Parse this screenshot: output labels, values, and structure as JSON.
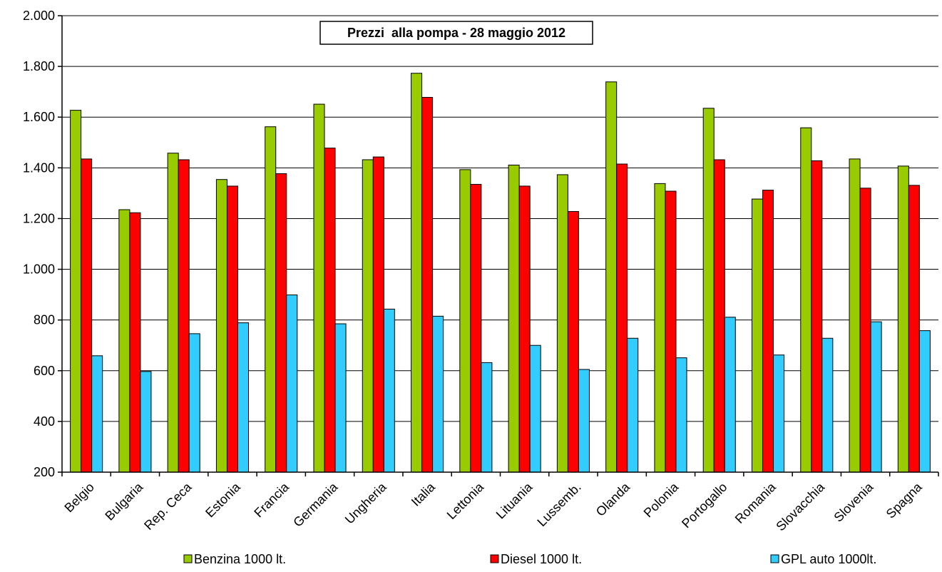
{
  "chart_data": {
    "type": "bar",
    "title": "Prezzi  alla pompa - 28 maggio 2012",
    "xlabel": "",
    "ylabel": "",
    "ylim": [
      200,
      2000
    ],
    "yticks": [
      200,
      400,
      600,
      800,
      1000,
      1200,
      1400,
      1600,
      1800,
      2000
    ],
    "ytick_labels": [
      "200",
      "400",
      "600",
      "800",
      "1.000",
      "1.200",
      "1.400",
      "1.600",
      "1.800",
      "2.000"
    ],
    "grid": true,
    "legend_position": "bottom",
    "categories": [
      "Belgio",
      "Bulgaria",
      "Rep. Ceca",
      "Estonia",
      "Francia",
      "Germania",
      "Ungheria",
      "Italia",
      "Lettonia",
      "Lituania",
      "Lussemb.",
      "Olanda",
      "Polonia",
      "Portogallo",
      "Romania",
      "Slovacchia",
      "Slovenia",
      "Spagna"
    ],
    "series": [
      {
        "name": "Benzina 1000 lt.",
        "color": "#99cc00",
        "values": [
          1627,
          1235,
          1458,
          1354,
          1562,
          1651,
          1432,
          1773,
          1393,
          1411,
          1373,
          1739,
          1338,
          1635,
          1277,
          1558,
          1435,
          1407
        ]
      },
      {
        "name": "Diesel 1000 lt.",
        "color": "#ff0000",
        "values": [
          1435,
          1223,
          1432,
          1328,
          1377,
          1478,
          1443,
          1678,
          1335,
          1328,
          1228,
          1415,
          1308,
          1432,
          1312,
          1428,
          1320,
          1331
        ]
      },
      {
        "name": "GPL auto 1000lt.",
        "color": "#33ccff",
        "values": [
          659,
          597,
          746,
          789,
          899,
          785,
          843,
          815,
          632,
          700,
          605,
          728,
          651,
          811,
          662,
          728,
          793,
          758
        ]
      }
    ]
  }
}
